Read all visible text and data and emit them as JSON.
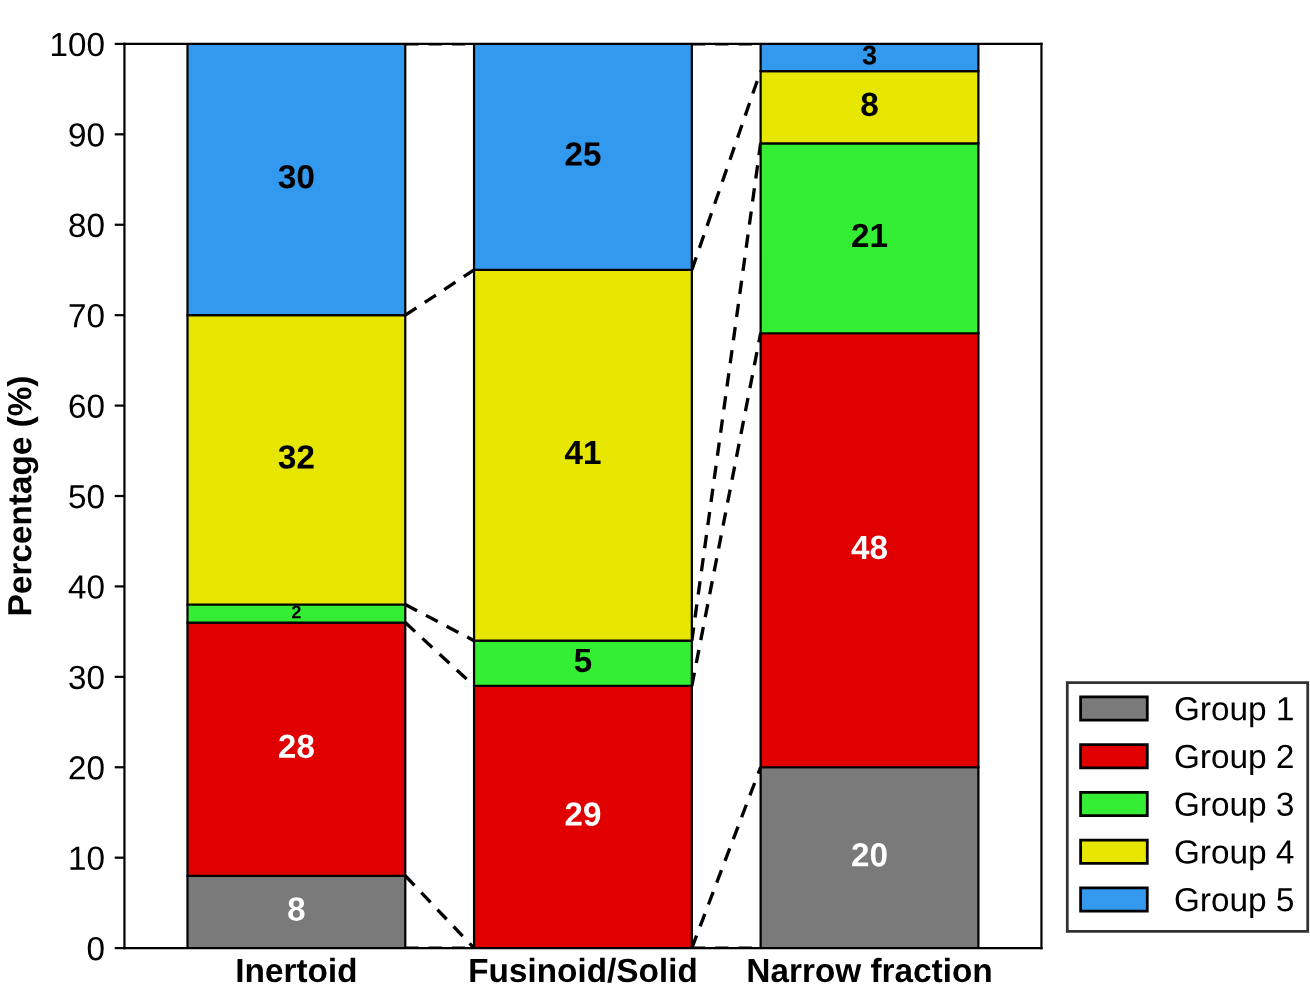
{
  "chart_data": {
    "type": "bar",
    "stacked": true,
    "ylabel": "Percentage (%)",
    "categories": [
      "Inertoid",
      "Fusinoid/Solid",
      "Narrow fraction"
    ],
    "series": [
      {
        "name": "Group 1",
        "color": "#7a7a7a",
        "values": [
          8,
          0,
          20
        ],
        "value_labels": [
          "8",
          null,
          "20"
        ]
      },
      {
        "name": "Group 2",
        "color": "#e00000",
        "values": [
          28,
          29,
          48
        ],
        "value_labels": [
          "28",
          "29",
          "48"
        ]
      },
      {
        "name": "Group 3",
        "color": "#33ee33",
        "values": [
          2,
          5,
          21
        ],
        "value_labels": [
          "2",
          "5",
          "21"
        ]
      },
      {
        "name": "Group 4",
        "color": "#e6e600",
        "values": [
          32,
          41,
          8
        ],
        "value_labels": [
          "32",
          "41",
          "8"
        ]
      },
      {
        "name": "Group 5",
        "color": "#3399ee",
        "values": [
          30,
          25,
          3
        ],
        "value_labels": [
          "30",
          "25",
          "3"
        ]
      }
    ],
    "ylim": [
      0,
      100
    ],
    "yticks": [
      0,
      10,
      20,
      30,
      40,
      50,
      60,
      70,
      80,
      90,
      100
    ],
    "grid": false,
    "legend": "bottom right"
  }
}
